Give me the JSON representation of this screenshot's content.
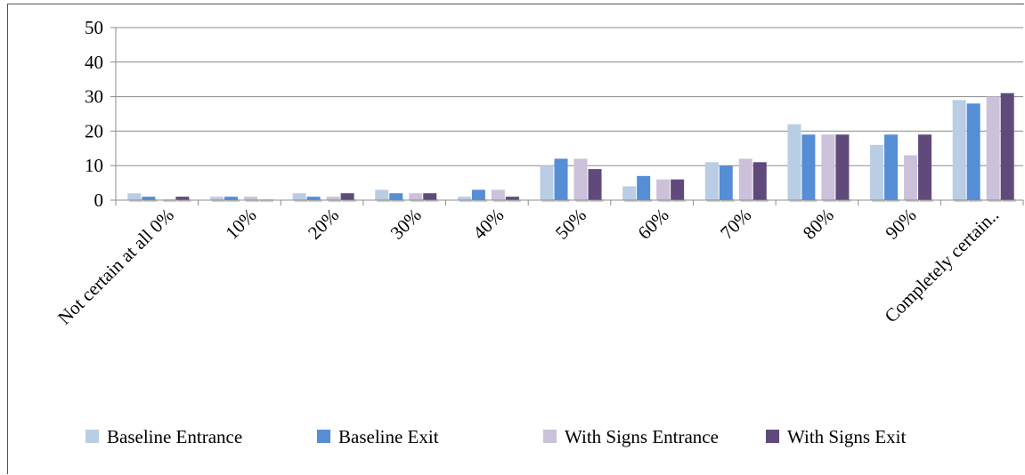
{
  "chart_data": {
    "type": "bar",
    "title": "",
    "xlabel": "",
    "ylabel": "",
    "ylim": [
      0,
      50
    ],
    "yticks": [
      0,
      10,
      20,
      30,
      40,
      50
    ],
    "grid": true,
    "legend_position": "bottom",
    "categories": [
      "Not certain at all 0%",
      "10%",
      "20%",
      "30%",
      "40%",
      "50%",
      "60%",
      "70%",
      "80%",
      "90%",
      "Completely certain.."
    ],
    "series": [
      {
        "name": "Baseline Entrance",
        "color": "#b9cde5",
        "values": [
          2,
          1,
          2,
          3,
          1,
          10,
          4,
          11,
          22,
          16,
          29
        ]
      },
      {
        "name": "Baseline Exit",
        "color": "#558ed5",
        "values": [
          1,
          1,
          1,
          2,
          3,
          12,
          7,
          10,
          19,
          19,
          28
        ]
      },
      {
        "name": "With Signs Entrance",
        "color": "#ccc1da",
        "values": [
          0,
          1,
          1,
          2,
          3,
          12,
          6,
          12,
          19,
          13,
          30
        ]
      },
      {
        "name": "With Signs Exit",
        "color": "#604a7b",
        "values": [
          1,
          0,
          2,
          2,
          1,
          9,
          6,
          11,
          19,
          19,
          31
        ]
      }
    ]
  }
}
